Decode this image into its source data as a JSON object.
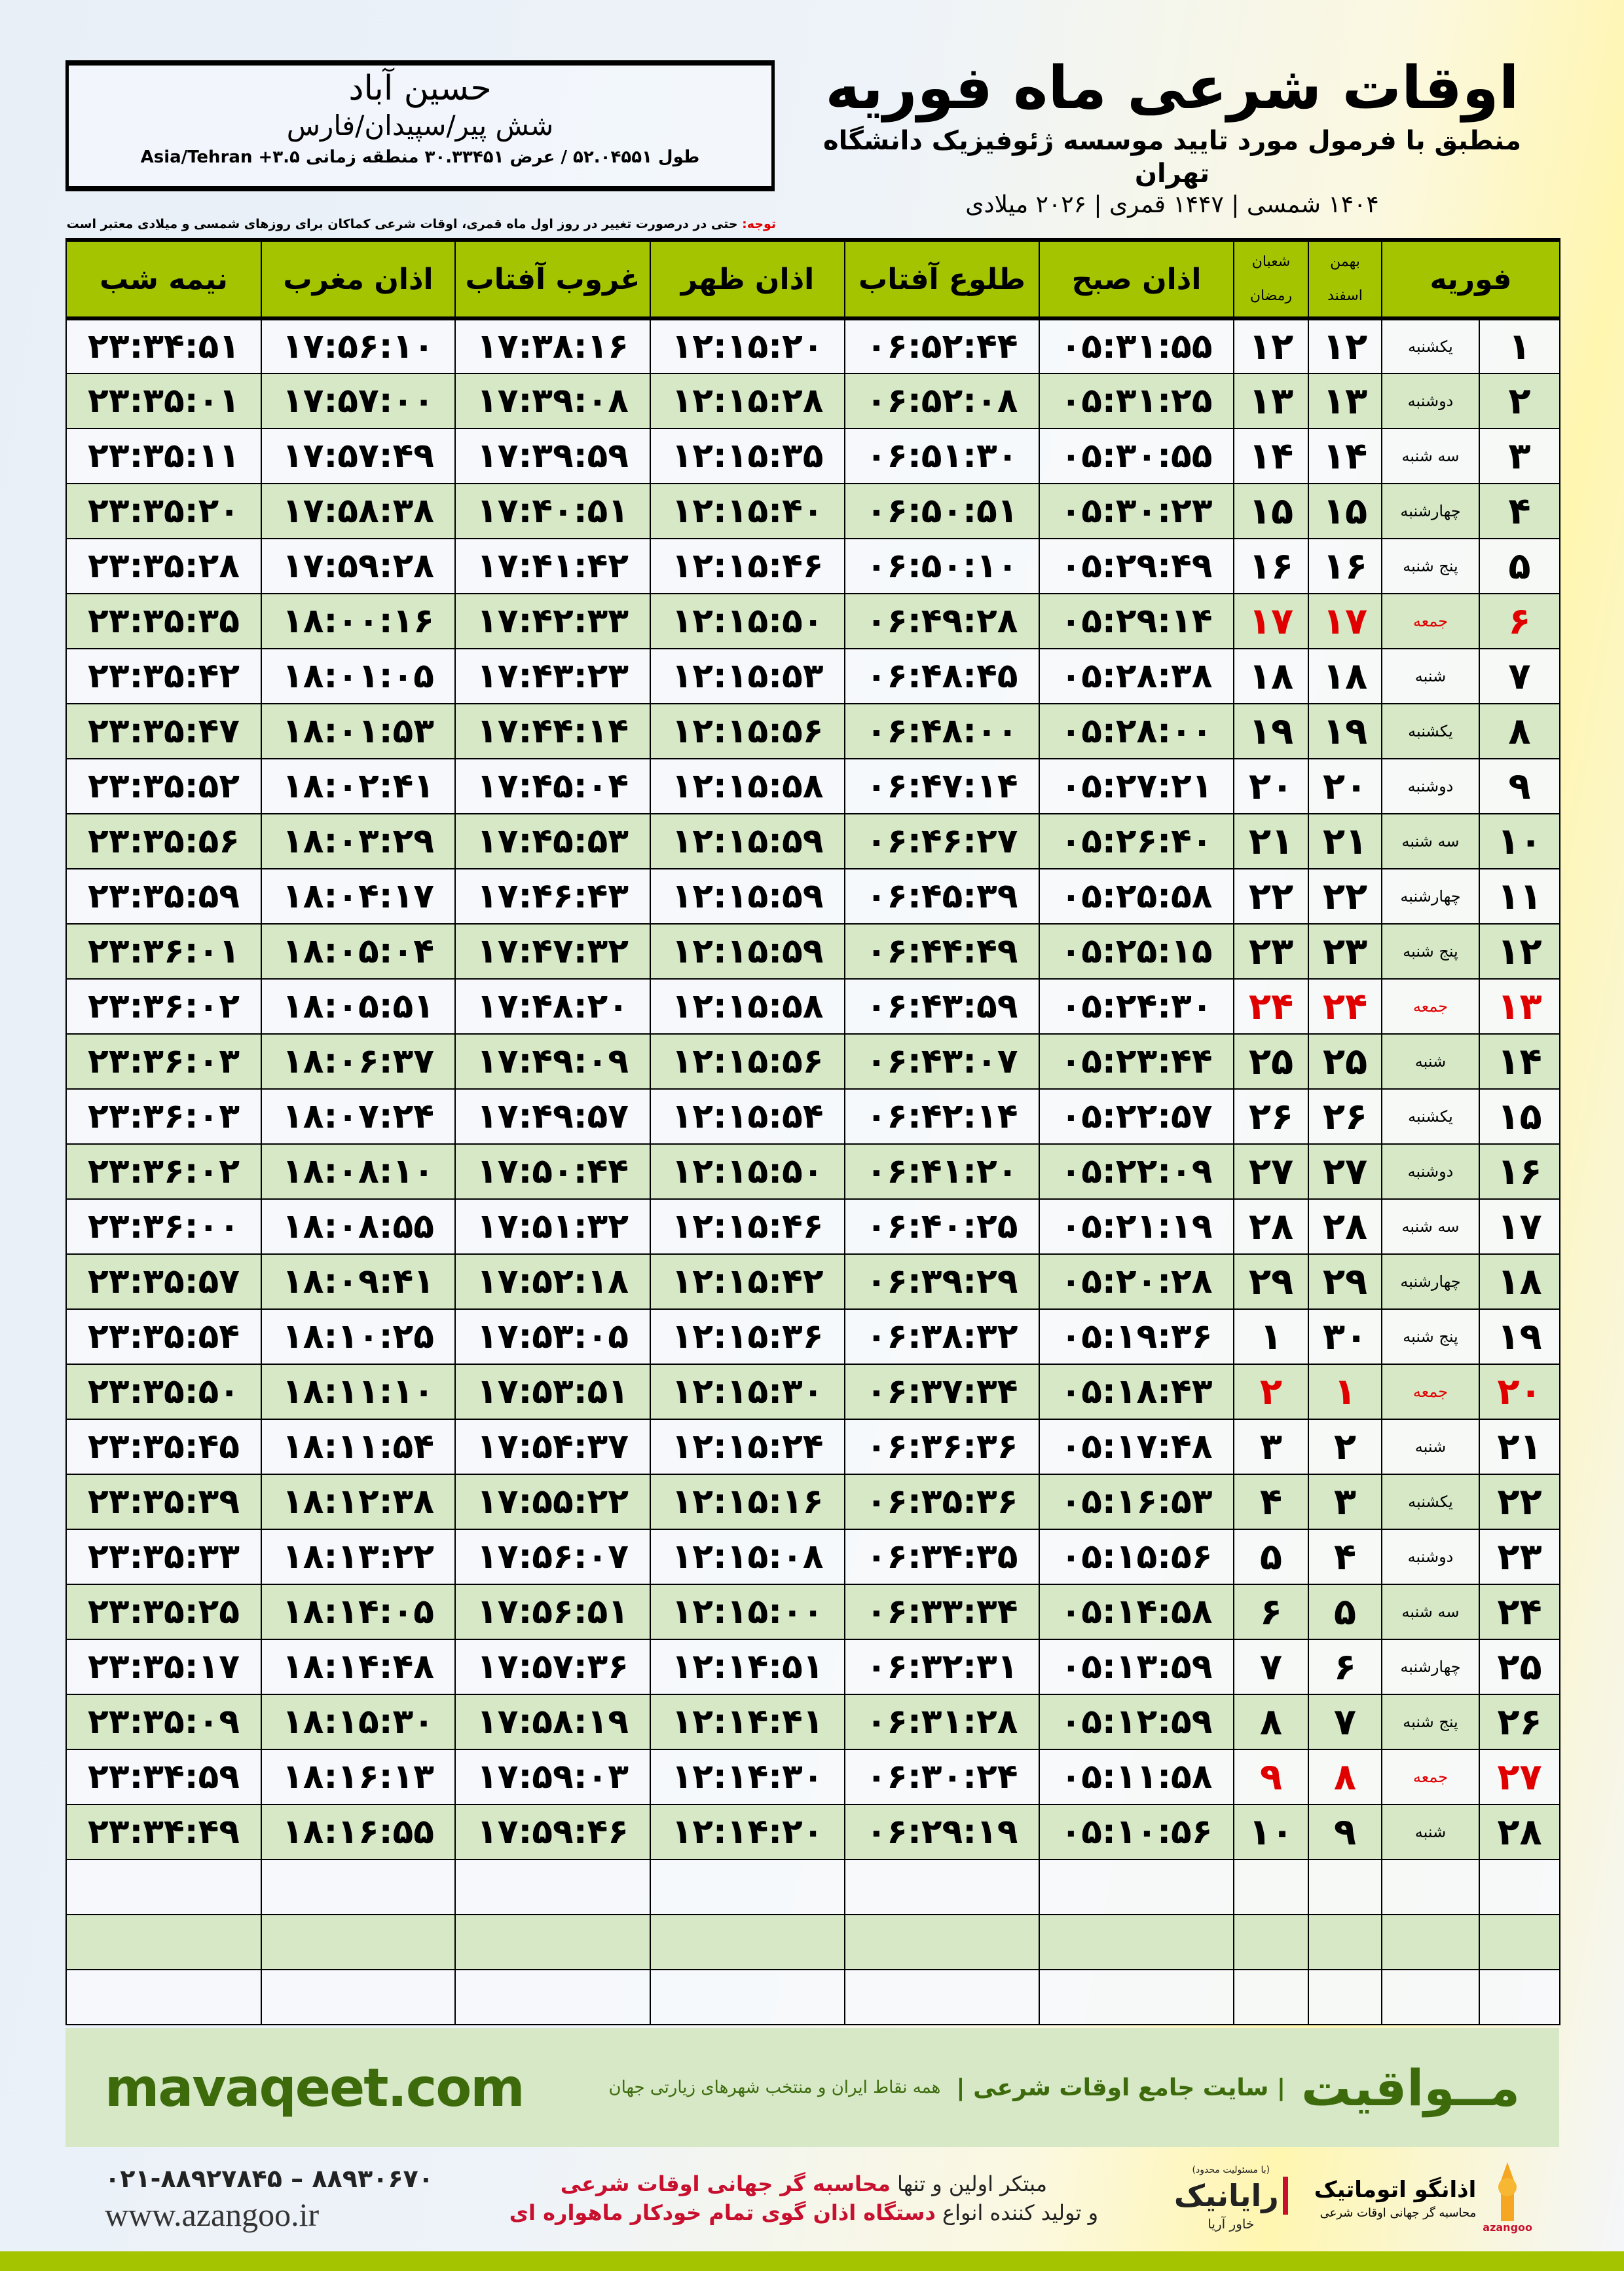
{
  "location": {
    "city": "حسین آباد",
    "region": "شش پیر/سپیدان/فارس",
    "coords": "طول ۵۲.۰۴۵۵۱ / عرض ۳۰.۳۳۴۵۱ منطقه زمانی ۳.۵+ Asia/Tehran"
  },
  "header": {
    "title": "اوقات شرعی ماه فوریه",
    "subtitle": "منطبق با فرمول مورد تایید موسسه ژئوفیزیک دانشگاه تهران",
    "dates": "۱۴۰۴ شمسی | ۱۴۴۷ قمری | ۲۰۲۶ میلادی"
  },
  "note": {
    "label": "توجه:",
    "text": " حتی در درصورت تغییر در روز اول ماه قمری، اوقات شرعی کماکان برای روزهای شمسی و میلادی معتبر است."
  },
  "columns": {
    "month": "فوریه",
    "solar_top": "بهمن",
    "solar_bottom": "اسفند",
    "lunar_top": "شعبان",
    "lunar_bottom": "رمضان",
    "fajr": "اذان صبح",
    "sunrise": "طلوع آفتاب",
    "dhuhr": "اذان ظهر",
    "sunset": "غروب آفتاب",
    "maghrib": "اذان مغرب",
    "midnight": "نیمه شب"
  },
  "colors": {
    "header_green": "#a5c400",
    "row_green": "#d6e8c6",
    "friday_red": "#e00000",
    "brand_green": "#3d6b0c"
  },
  "rows": [
    [
      "۱",
      "یکشنبه",
      "۱۲",
      "۱۲",
      "۰۵:۳۱:۵۵",
      "۰۶:۵۲:۴۴",
      "۱۲:۱۵:۲۰",
      "۱۷:۳۸:۱۶",
      "۱۷:۵۶:۱۰",
      "۲۳:۳۴:۵۱"
    ],
    [
      "۲",
      "دوشنبه",
      "۱۳",
      "۱۳",
      "۰۵:۳۱:۲۵",
      "۰۶:۵۲:۰۸",
      "۱۲:۱۵:۲۸",
      "۱۷:۳۹:۰۸",
      "۱۷:۵۷:۰۰",
      "۲۳:۳۵:۰۱"
    ],
    [
      "۳",
      "سه شنبه",
      "۱۴",
      "۱۴",
      "۰۵:۳۰:۵۵",
      "۰۶:۵۱:۳۰",
      "۱۲:۱۵:۳۵",
      "۱۷:۳۹:۵۹",
      "۱۷:۵۷:۴۹",
      "۲۳:۳۵:۱۱"
    ],
    [
      "۴",
      "چهارشنبه",
      "۱۵",
      "۱۵",
      "۰۵:۳۰:۲۳",
      "۰۶:۵۰:۵۱",
      "۱۲:۱۵:۴۰",
      "۱۷:۴۰:۵۱",
      "۱۷:۵۸:۳۸",
      "۲۳:۳۵:۲۰"
    ],
    [
      "۵",
      "پنج شنبه",
      "۱۶",
      "۱۶",
      "۰۵:۲۹:۴۹",
      "۰۶:۵۰:۱۰",
      "۱۲:۱۵:۴۶",
      "۱۷:۴۱:۴۲",
      "۱۷:۵۹:۲۸",
      "۲۳:۳۵:۲۸"
    ],
    [
      "۶",
      "جمعه",
      "۱۷",
      "۱۷",
      "۰۵:۲۹:۱۴",
      "۰۶:۴۹:۲۸",
      "۱۲:۱۵:۵۰",
      "۱۷:۴۲:۳۳",
      "۱۸:۰۰:۱۶",
      "۲۳:۳۵:۳۵"
    ],
    [
      "۷",
      "شنبه",
      "۱۸",
      "۱۸",
      "۰۵:۲۸:۳۸",
      "۰۶:۴۸:۴۵",
      "۱۲:۱۵:۵۳",
      "۱۷:۴۳:۲۳",
      "۱۸:۰۱:۰۵",
      "۲۳:۳۵:۴۲"
    ],
    [
      "۸",
      "یکشنبه",
      "۱۹",
      "۱۹",
      "۰۵:۲۸:۰۰",
      "۰۶:۴۸:۰۰",
      "۱۲:۱۵:۵۶",
      "۱۷:۴۴:۱۴",
      "۱۸:۰۱:۵۳",
      "۲۳:۳۵:۴۷"
    ],
    [
      "۹",
      "دوشنبه",
      "۲۰",
      "۲۰",
      "۰۵:۲۷:۲۱",
      "۰۶:۴۷:۱۴",
      "۱۲:۱۵:۵۸",
      "۱۷:۴۵:۰۴",
      "۱۸:۰۲:۴۱",
      "۲۳:۳۵:۵۲"
    ],
    [
      "۱۰",
      "سه شنبه",
      "۲۱",
      "۲۱",
      "۰۵:۲۶:۴۰",
      "۰۶:۴۶:۲۷",
      "۱۲:۱۵:۵۹",
      "۱۷:۴۵:۵۳",
      "۱۸:۰۳:۲۹",
      "۲۳:۳۵:۵۶"
    ],
    [
      "۱۱",
      "چهارشنبه",
      "۲۲",
      "۲۲",
      "۰۵:۲۵:۵۸",
      "۰۶:۴۵:۳۹",
      "۱۲:۱۵:۵۹",
      "۱۷:۴۶:۴۳",
      "۱۸:۰۴:۱۷",
      "۲۳:۳۵:۵۹"
    ],
    [
      "۱۲",
      "پنج شنبه",
      "۲۳",
      "۲۳",
      "۰۵:۲۵:۱۵",
      "۰۶:۴۴:۴۹",
      "۱۲:۱۵:۵۹",
      "۱۷:۴۷:۳۲",
      "۱۸:۰۵:۰۴",
      "۲۳:۳۶:۰۱"
    ],
    [
      "۱۳",
      "جمعه",
      "۲۴",
      "۲۴",
      "۰۵:۲۴:۳۰",
      "۰۶:۴۳:۵۹",
      "۱۲:۱۵:۵۸",
      "۱۷:۴۸:۲۰",
      "۱۸:۰۵:۵۱",
      "۲۳:۳۶:۰۲"
    ],
    [
      "۱۴",
      "شنبه",
      "۲۵",
      "۲۵",
      "۰۵:۲۳:۴۴",
      "۰۶:۴۳:۰۷",
      "۱۲:۱۵:۵۶",
      "۱۷:۴۹:۰۹",
      "۱۸:۰۶:۳۷",
      "۲۳:۳۶:۰۳"
    ],
    [
      "۱۵",
      "یکشنبه",
      "۲۶",
      "۲۶",
      "۰۵:۲۲:۵۷",
      "۰۶:۴۲:۱۴",
      "۱۲:۱۵:۵۴",
      "۱۷:۴۹:۵۷",
      "۱۸:۰۷:۲۴",
      "۲۳:۳۶:۰۳"
    ],
    [
      "۱۶",
      "دوشنبه",
      "۲۷",
      "۲۷",
      "۰۵:۲۲:۰۹",
      "۰۶:۴۱:۲۰",
      "۱۲:۱۵:۵۰",
      "۱۷:۵۰:۴۴",
      "۱۸:۰۸:۱۰",
      "۲۳:۳۶:۰۲"
    ],
    [
      "۱۷",
      "سه شنبه",
      "۲۸",
      "۲۸",
      "۰۵:۲۱:۱۹",
      "۰۶:۴۰:۲۵",
      "۱۲:۱۵:۴۶",
      "۱۷:۵۱:۳۲",
      "۱۸:۰۸:۵۵",
      "۲۳:۳۶:۰۰"
    ],
    [
      "۱۸",
      "چهارشنبه",
      "۲۹",
      "۲۹",
      "۰۵:۲۰:۲۸",
      "۰۶:۳۹:۲۹",
      "۱۲:۱۵:۴۲",
      "۱۷:۵۲:۱۸",
      "۱۸:۰۹:۴۱",
      "۲۳:۳۵:۵۷"
    ],
    [
      "۱۹",
      "پنج شنبه",
      "۳۰",
      "۱",
      "۰۵:۱۹:۳۶",
      "۰۶:۳۸:۳۲",
      "۱۲:۱۵:۳۶",
      "۱۷:۵۳:۰۵",
      "۱۸:۱۰:۲۵",
      "۲۳:۳۵:۵۴"
    ],
    [
      "۲۰",
      "جمعه",
      "۱",
      "۲",
      "۰۵:۱۸:۴۳",
      "۰۶:۳۷:۳۴",
      "۱۲:۱۵:۳۰",
      "۱۷:۵۳:۵۱",
      "۱۸:۱۱:۱۰",
      "۲۳:۳۵:۵۰"
    ],
    [
      "۲۱",
      "شنبه",
      "۲",
      "۳",
      "۰۵:۱۷:۴۸",
      "۰۶:۳۶:۳۶",
      "۱۲:۱۵:۲۴",
      "۱۷:۵۴:۳۷",
      "۱۸:۱۱:۵۴",
      "۲۳:۳۵:۴۵"
    ],
    [
      "۲۲",
      "یکشنبه",
      "۳",
      "۴",
      "۰۵:۱۶:۵۳",
      "۰۶:۳۵:۳۶",
      "۱۲:۱۵:۱۶",
      "۱۷:۵۵:۲۲",
      "۱۸:۱۲:۳۸",
      "۲۳:۳۵:۳۹"
    ],
    [
      "۲۳",
      "دوشنبه",
      "۴",
      "۵",
      "۰۵:۱۵:۵۶",
      "۰۶:۳۴:۳۵",
      "۱۲:۱۵:۰۸",
      "۱۷:۵۶:۰۷",
      "۱۸:۱۳:۲۲",
      "۲۳:۳۵:۳۳"
    ],
    [
      "۲۴",
      "سه شنبه",
      "۵",
      "۶",
      "۰۵:۱۴:۵۸",
      "۰۶:۳۳:۳۴",
      "۱۲:۱۵:۰۰",
      "۱۷:۵۶:۵۱",
      "۱۸:۱۴:۰۵",
      "۲۳:۳۵:۲۵"
    ],
    [
      "۲۵",
      "چهارشنبه",
      "۶",
      "۷",
      "۰۵:۱۳:۵۹",
      "۰۶:۳۲:۳۱",
      "۱۲:۱۴:۵۱",
      "۱۷:۵۷:۳۶",
      "۱۸:۱۴:۴۸",
      "۲۳:۳۵:۱۷"
    ],
    [
      "۲۶",
      "پنج شنبه",
      "۷",
      "۸",
      "۰۵:۱۲:۵۹",
      "۰۶:۳۱:۲۸",
      "۱۲:۱۴:۴۱",
      "۱۷:۵۸:۱۹",
      "۱۸:۱۵:۳۰",
      "۲۳:۳۵:۰۹"
    ],
    [
      "۲۷",
      "جمعه",
      "۸",
      "۹",
      "۰۵:۱۱:۵۸",
      "۰۶:۳۰:۲۴",
      "۱۲:۱۴:۳۰",
      "۱۷:۵۹:۰۳",
      "۱۸:۱۶:۱۳",
      "۲۳:۳۴:۵۹"
    ],
    [
      "۲۸",
      "شنبه",
      "۹",
      "۱۰",
      "۰۵:۱۰:۵۶",
      "۰۶:۲۹:۱۹",
      "۱۲:۱۴:۲۰",
      "۱۷:۵۹:۴۶",
      "۱۸:۱۶:۵۵",
      "۲۳:۳۴:۴۹"
    ]
  ],
  "friday_label": "جمعه",
  "footer": {
    "site": "mavaqeet.com",
    "brand": "مــواقیت",
    "brand_sub": "| سایت جامع اوقات شرعی |",
    "brand_sub2": "همه نقاط ایران و منتخب شهرهای زیارتی جهان",
    "phone": "۰۲۱-۸۸۹۲۷۸۴۵ – ۸۸۹۳۰۶۷۰",
    "web": "www.azangoo.ir",
    "promo_1a": "مبتکر اولین و تنها ",
    "promo_1b": "محاسبه گر جهانی اوقات شرعی",
    "promo_2a": "و تولید کننده انواع ",
    "promo_2b": "دستگاه اذان گوی تمام خودکار ماهواره ای",
    "rayanik": "رایانیک",
    "rayanik_sub": "خاور آریا",
    "rayanik_note": "(با مسئولیت محدود)",
    "azangoo": "اذانگو اتوماتیک",
    "azangoo_sub": "محاسبه گر جهانی اوقات شرعی",
    "azangoo_latin": "azangoo"
  }
}
